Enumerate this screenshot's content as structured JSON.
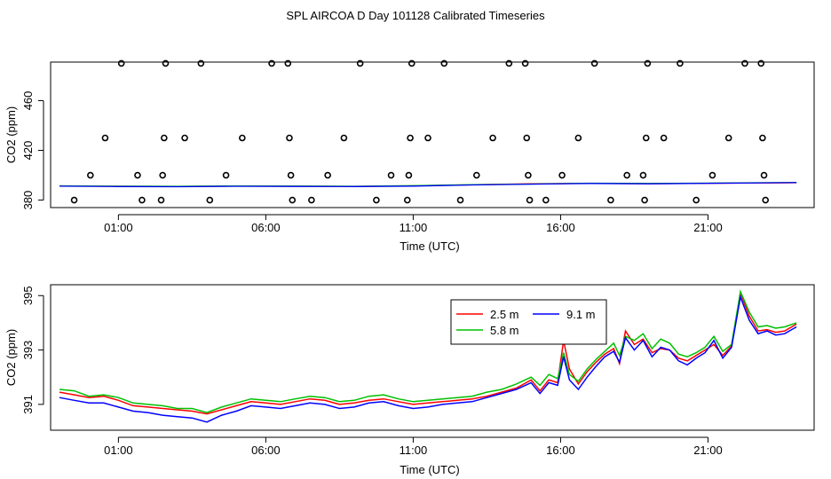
{
  "title": "SPL AIRCOA D  Day 101128  Calibrated Timeseries",
  "chart_data": [
    {
      "type": "scatter",
      "xlabel": "Time (UTC)",
      "ylabel": "CO2 (ppm)",
      "x_unit": "hours (UTC)",
      "xlim": [
        -1.3,
        24.6
      ],
      "ylim": [
        374,
        491
      ],
      "x_ticks": [
        {
          "value": 1,
          "label": "01:00"
        },
        {
          "value": 6,
          "label": "06:00"
        },
        {
          "value": 11,
          "label": "11:00"
        },
        {
          "value": 16,
          "label": "16:00"
        },
        {
          "value": 21,
          "label": "21:00"
        }
      ],
      "y_ticks": [
        {
          "value": 380,
          "label": "380"
        },
        {
          "value": 420,
          "label": "420"
        },
        {
          "value": 460,
          "label": "460"
        }
      ],
      "points": [
        [
          -0.5,
          380
        ],
        [
          0.05,
          400
        ],
        [
          0.55,
          430
        ],
        [
          1.1,
          490
        ],
        [
          1.65,
          400
        ],
        [
          1.8,
          380
        ],
        [
          2.45,
          380
        ],
        [
          2.5,
          400
        ],
        [
          2.55,
          430
        ],
        [
          2.6,
          490
        ],
        [
          3.25,
          430
        ],
        [
          3.8,
          490
        ],
        [
          4.1,
          380
        ],
        [
          4.65,
          400
        ],
        [
          5.2,
          430
        ],
        [
          6.2,
          490
        ],
        [
          6.75,
          490
        ],
        [
          6.8,
          430
        ],
        [
          6.85,
          400
        ],
        [
          6.9,
          380
        ],
        [
          7.55,
          380
        ],
        [
          8.1,
          400
        ],
        [
          8.65,
          430
        ],
        [
          9.2,
          490
        ],
        [
          9.75,
          380
        ],
        [
          10.25,
          400
        ],
        [
          10.8,
          380
        ],
        [
          10.85,
          400
        ],
        [
          10.9,
          430
        ],
        [
          10.95,
          490
        ],
        [
          11.5,
          430
        ],
        [
          12.05,
          490
        ],
        [
          12.6,
          380
        ],
        [
          13.15,
          400
        ],
        [
          13.7,
          430
        ],
        [
          14.25,
          490
        ],
        [
          14.8,
          490
        ],
        [
          14.85,
          430
        ],
        [
          14.9,
          400
        ],
        [
          14.95,
          380
        ],
        [
          15.5,
          380
        ],
        [
          16.05,
          400
        ],
        [
          16.6,
          430
        ],
        [
          17.15,
          490
        ],
        [
          17.7,
          380
        ],
        [
          18.25,
          400
        ],
        [
          18.8,
          400
        ],
        [
          18.85,
          380
        ],
        [
          18.9,
          430
        ],
        [
          18.95,
          490
        ],
        [
          19.5,
          430
        ],
        [
          20.05,
          490
        ],
        [
          20.6,
          380
        ],
        [
          21.15,
          400
        ],
        [
          21.7,
          430
        ],
        [
          22.25,
          490
        ],
        [
          22.8,
          490
        ],
        [
          22.85,
          430
        ],
        [
          22.9,
          400
        ],
        [
          22.95,
          380
        ]
      ],
      "series": [
        {
          "name": "2.5 m",
          "color": "#ff0000",
          "values": [
            391.4,
            391.1,
            391.0,
            391.3,
            391.2,
            391.0,
            391.5,
            392.3,
            393.1,
            393.5,
            393.2,
            394.0
          ]
        },
        {
          "name": "5.8 m",
          "color": "#00c000",
          "values": [
            391.5,
            391.2,
            391.1,
            391.4,
            391.3,
            391.1,
            391.6,
            392.5,
            392.9,
            393.6,
            393.4,
            394.2
          ]
        },
        {
          "name": "9.1 m",
          "color": "#0000ff",
          "values": [
            391.2,
            390.9,
            390.8,
            391.1,
            391.0,
            390.9,
            391.3,
            392.2,
            392.8,
            393.4,
            393.1,
            394.1
          ]
        }
      ],
      "series_x": [
        -1,
        1,
        3,
        5,
        7,
        9,
        11,
        13,
        15,
        17,
        19,
        24
      ]
    },
    {
      "type": "line",
      "xlabel": "Time (UTC)",
      "ylabel": "CO2 (ppm)",
      "x_unit": "hours (UTC)",
      "xlim": [
        -1.3,
        24.6
      ],
      "ylim": [
        390.05,
        395.4
      ],
      "legend": "top-center",
      "x_ticks": [
        {
          "value": 1,
          "label": "01:00"
        },
        {
          "value": 6,
          "label": "06:00"
        },
        {
          "value": 11,
          "label": "11:00"
        },
        {
          "value": 16,
          "label": "16:00"
        },
        {
          "value": 21,
          "label": "21:00"
        }
      ],
      "y_ticks": [
        {
          "value": 391,
          "label": "391"
        },
        {
          "value": 393,
          "label": "393"
        },
        {
          "value": 395,
          "label": "395"
        }
      ],
      "legend_layout": [
        {
          "col": 0,
          "row": 0,
          "series": 0
        },
        {
          "col": 0,
          "row": 1,
          "series": 1
        },
        {
          "col": 1,
          "row": 0,
          "series": 2
        }
      ],
      "x": [
        -1.0,
        -0.5,
        0.0,
        0.5,
        1.0,
        1.5,
        2.0,
        2.5,
        3.0,
        3.5,
        4.0,
        4.5,
        5.0,
        5.5,
        6.0,
        6.5,
        7.0,
        7.5,
        8.0,
        8.5,
        9.0,
        9.5,
        10.0,
        10.5,
        11.0,
        11.5,
        12.0,
        12.5,
        13.0,
        13.5,
        14.0,
        14.5,
        15.0,
        15.3,
        15.6,
        15.9,
        16.1,
        16.3,
        16.6,
        16.9,
        17.2,
        17.5,
        17.8,
        18.0,
        18.2,
        18.5,
        18.8,
        19.1,
        19.4,
        19.7,
        20.0,
        20.3,
        20.6,
        20.9,
        21.2,
        21.5,
        21.8,
        22.1,
        22.4,
        22.7,
        23.0,
        23.3,
        23.6,
        24.0
      ],
      "series": [
        {
          "name": "2.5 m",
          "color": "#ff0000",
          "values": [
            391.45,
            391.35,
            391.25,
            391.3,
            391.15,
            390.95,
            390.9,
            390.85,
            390.8,
            390.75,
            390.65,
            390.8,
            390.95,
            391.1,
            391.05,
            391.0,
            391.1,
            391.2,
            391.15,
            391.0,
            391.05,
            391.15,
            391.2,
            391.1,
            391.0,
            391.05,
            391.1,
            391.15,
            391.2,
            391.3,
            391.45,
            391.6,
            391.9,
            391.5,
            391.9,
            391.8,
            393.35,
            392.3,
            391.75,
            392.2,
            392.55,
            392.85,
            393.05,
            392.5,
            393.7,
            393.2,
            393.4,
            392.9,
            393.05,
            393.0,
            392.7,
            392.6,
            392.8,
            393.0,
            393.2,
            392.8,
            393.15,
            395.1,
            394.25,
            393.7,
            393.75,
            393.65,
            393.7,
            393.95
          ]
        },
        {
          "name": "5.8 m",
          "color": "#00c000",
          "values": [
            391.55,
            391.5,
            391.3,
            391.35,
            391.25,
            391.05,
            391.0,
            390.95,
            390.85,
            390.85,
            390.7,
            390.9,
            391.05,
            391.2,
            391.15,
            391.1,
            391.2,
            391.3,
            391.25,
            391.1,
            391.15,
            391.3,
            391.35,
            391.2,
            391.1,
            391.15,
            391.2,
            391.25,
            391.3,
            391.45,
            391.55,
            391.75,
            392.0,
            391.7,
            392.1,
            391.95,
            392.9,
            392.1,
            391.85,
            392.3,
            392.65,
            392.95,
            393.25,
            392.8,
            393.5,
            393.35,
            393.6,
            393.05,
            393.4,
            393.25,
            392.85,
            392.75,
            392.9,
            393.1,
            393.5,
            392.95,
            393.2,
            395.15,
            394.4,
            393.85,
            393.9,
            393.8,
            393.85,
            394.0
          ]
        },
        {
          "name": "9.1 m",
          "color": "#0000ff",
          "values": [
            391.25,
            391.15,
            391.05,
            391.05,
            390.9,
            390.75,
            390.7,
            390.6,
            390.55,
            390.5,
            390.35,
            390.6,
            390.75,
            390.95,
            390.9,
            390.85,
            390.95,
            391.05,
            391.0,
            390.85,
            390.9,
            391.05,
            391.1,
            390.95,
            390.85,
            390.9,
            391.0,
            391.05,
            391.1,
            391.25,
            391.4,
            391.55,
            391.8,
            391.4,
            391.8,
            391.7,
            392.75,
            391.9,
            391.55,
            392.0,
            392.4,
            392.75,
            392.95,
            392.55,
            393.45,
            393.0,
            393.35,
            392.75,
            393.1,
            393.0,
            392.6,
            392.45,
            392.7,
            392.9,
            393.35,
            392.7,
            393.1,
            394.95,
            394.1,
            393.6,
            393.7,
            393.55,
            393.6,
            393.85
          ]
        }
      ]
    }
  ]
}
